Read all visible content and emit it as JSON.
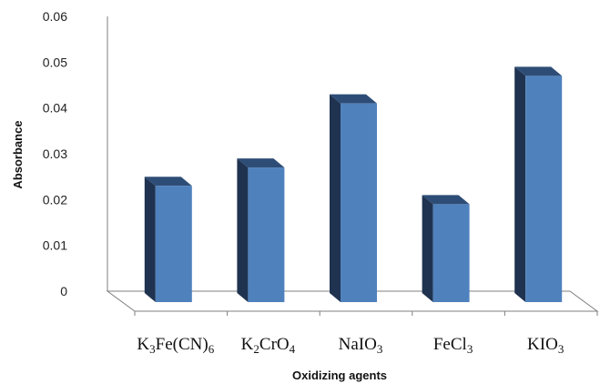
{
  "chart_data": {
    "type": "bar",
    "style": "3d-columns",
    "categories": [
      {
        "base": "K",
        "parts": [
          [
            "K",
            false
          ],
          [
            "3",
            true
          ],
          [
            "Fe(CN)",
            false
          ],
          [
            "6",
            true
          ]
        ],
        "text": "K3Fe(CN)6"
      },
      {
        "base": "K",
        "parts": [
          [
            "K",
            false
          ],
          [
            "2",
            true
          ],
          [
            "CrO",
            false
          ],
          [
            "4",
            true
          ]
        ],
        "text": "K2CrO4"
      },
      {
        "base": "Na",
        "parts": [
          [
            "NaIO",
            false
          ],
          [
            "3",
            true
          ]
        ],
        "text": "NaIO3"
      },
      {
        "base": "Fe",
        "parts": [
          [
            "FeCl",
            false
          ],
          [
            "3",
            true
          ]
        ],
        "text": "FeCl3"
      },
      {
        "base": "K",
        "parts": [
          [
            "KIO",
            false
          ],
          [
            "3",
            true
          ]
        ],
        "text": "KIO3"
      }
    ],
    "values": [
      0.023,
      0.027,
      0.041,
      0.019,
      0.047
    ],
    "ylim": [
      0,
      0.06
    ],
    "yticks": [
      "0",
      "0.01",
      "0.02",
      "0.03",
      "0.04",
      "0.05",
      "0.06"
    ],
    "xlabel": "Oxidizing agents",
    "ylabel": "Absorbance",
    "grid": false,
    "legend": "none"
  },
  "colors": {
    "bar_front": "#4f81bd",
    "bar_side": "#1f3350",
    "bar_top": "#2e4d76",
    "axis": "#7f7f7f"
  }
}
